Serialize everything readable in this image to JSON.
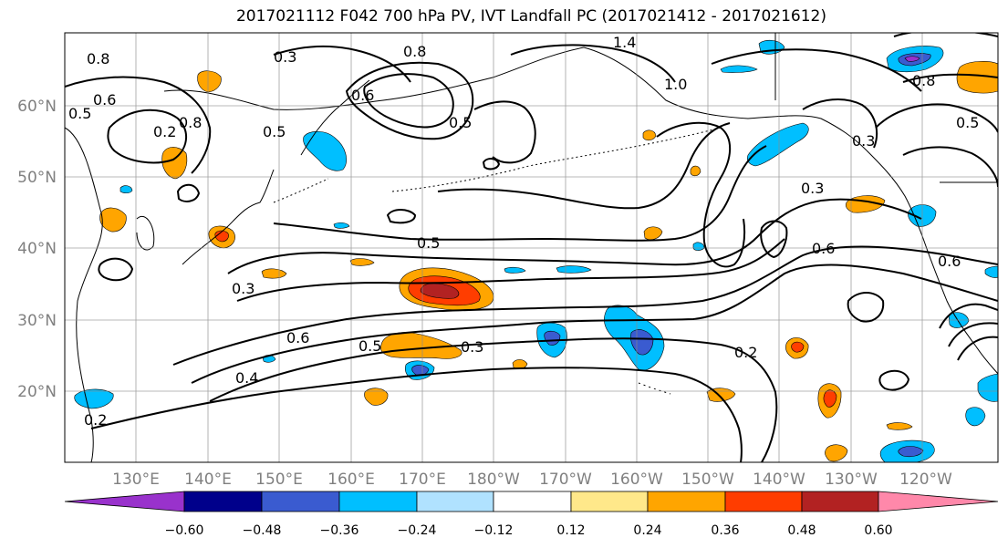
{
  "title": "2017021112 F042 700 hPa PV, IVT Landfall PC (2017021412 - 2017021612)",
  "lat_labels": [
    "60°N",
    "50°N",
    "40°N",
    "30°N",
    "20°N"
  ],
  "lon_labels": [
    "130°E",
    "140°E",
    "150°E",
    "160°E",
    "170°E",
    "180°W",
    "170°W",
    "160°W",
    "150°W",
    "140°W",
    "130°W",
    "120°W"
  ],
  "colorbar": {
    "colors": [
      "#9932CC",
      "#00008B",
      "#3A5BD0",
      "#00BFFF",
      "#B0E2FF",
      "#FFFFFF",
      "#FFE88A",
      "#FFA500",
      "#FF3D00",
      "#B22222",
      "#FF88AA"
    ],
    "ticks": [
      "−0.60",
      "−0.48",
      "−0.36",
      "−0.24",
      "−0.12",
      "0.12",
      "0.24",
      "0.36",
      "0.48",
      "0.60"
    ]
  },
  "contour_labels": [
    "0.8",
    "0.3",
    "0.8",
    "0.5",
    "0.6",
    "0.6",
    "0.5",
    "0.5",
    "0.8",
    "0.3",
    "0.2",
    "0.5",
    "0.6",
    "0.3",
    "0.4",
    "0.2",
    "0.5",
    "0.3",
    "0.6",
    "0.6",
    "0.5",
    "0.3",
    "1.0",
    "1.4",
    "0.8",
    "0.2"
  ]
}
